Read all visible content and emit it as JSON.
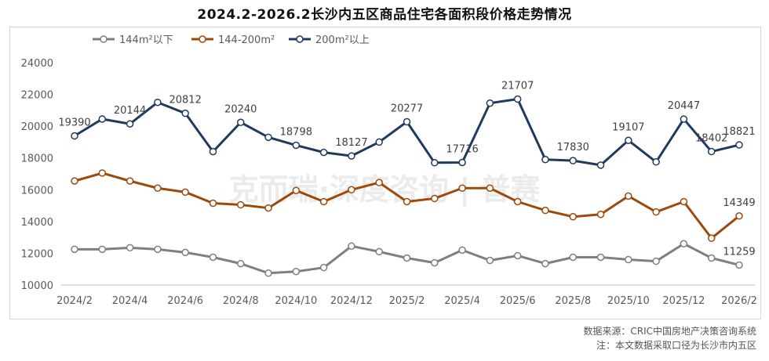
{
  "chart_data": {
    "type": "line",
    "title": "2024.2-2026.2长沙内五区商品住宅各面积段价格走势情况",
    "xlabel": "",
    "ylabel": "",
    "ylim": [
      10000,
      24000
    ],
    "yticks": [
      10000,
      12000,
      14000,
      16000,
      18000,
      20000,
      22000,
      24000
    ],
    "x": [
      "2024/2",
      "2024/3",
      "2024/4",
      "2024/5",
      "2024/6",
      "2024/7",
      "2024/8",
      "2024/9",
      "2024/10",
      "2024/11",
      "2024/12",
      "2025/1",
      "2025/2",
      "2025/3",
      "2025/4",
      "2025/5",
      "2025/6",
      "2025/7",
      "2025/8",
      "2025/9",
      "2025/10",
      "2025/11",
      "2025/12",
      "2026/1",
      "2026/2"
    ],
    "xticks": [
      "2024/2",
      "2024/4",
      "2024/6",
      "2024/8",
      "2024/10",
      "2024/12",
      "2025/2",
      "2025/4",
      "2025/6",
      "2025/8",
      "2025/10",
      "2025/12",
      "2026/2"
    ],
    "grid": false,
    "legend": "top-left",
    "series": [
      {
        "name": "144m²以下",
        "color": "#7f7f7f",
        "values": [
          12250,
          12250,
          12350,
          12250,
          12050,
          11750,
          11350,
          10750,
          10850,
          11100,
          12450,
          12100,
          11700,
          11400,
          12200,
          11550,
          11850,
          11350,
          11750,
          11750,
          11600,
          11500,
          12600,
          11700,
          11259
        ],
        "labels": {
          "24": "11259"
        }
      },
      {
        "name": "144-200m²",
        "color": "#9c4a0b",
        "values": [
          16550,
          17050,
          16550,
          16100,
          15850,
          15150,
          15050,
          14850,
          15950,
          15250,
          16000,
          16450,
          15250,
          15450,
          16100,
          16100,
          15250,
          14700,
          14300,
          14450,
          15600,
          14600,
          15250,
          12950,
          14349
        ],
        "labels": {
          "24": "14349"
        }
      },
      {
        "name": "200m²以上",
        "color": "#1f3a5f",
        "values": [
          19390,
          20450,
          20144,
          21500,
          20812,
          18400,
          20240,
          19300,
          18798,
          18350,
          18127,
          19000,
          20277,
          17700,
          17716,
          21450,
          21707,
          17900,
          17830,
          17550,
          19107,
          17750,
          20447,
          18402,
          18821
        ],
        "labels": {
          "0": "19390",
          "2": "20144",
          "4": "20812",
          "6": "20240",
          "8": "18798",
          "10": "18127",
          "12": "20277",
          "14": "17716",
          "16": "21707",
          "18": "17830",
          "20": "19107",
          "22": "20447",
          "23": "18402",
          "24": "18821"
        }
      }
    ],
    "watermark": "克而瑞·深度咨询 | 普赛"
  },
  "source": {
    "line1": "数据来源：CRIC中国房地产决策咨询系统",
    "line2": "注：本文数据采取口径为长沙市内五区"
  }
}
